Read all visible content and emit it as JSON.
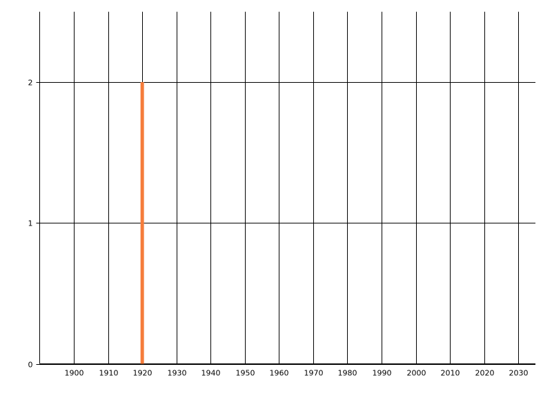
{
  "chart_data": {
    "type": "bar",
    "title": "",
    "xlabel": "",
    "ylabel": "",
    "x": [
      1920
    ],
    "values": [
      2
    ],
    "xlim": [
      1890,
      2035
    ],
    "ylim": [
      0,
      2.5
    ],
    "x_ticks": [
      1900,
      1910,
      1920,
      1930,
      1940,
      1950,
      1960,
      1970,
      1980,
      1990,
      2000,
      2010,
      2020,
      2030
    ],
    "y_ticks": [
      0,
      1,
      2
    ],
    "grid": true,
    "legend": "none",
    "colors": {
      "bar": "#f57c3b",
      "grid": "#000000"
    }
  }
}
